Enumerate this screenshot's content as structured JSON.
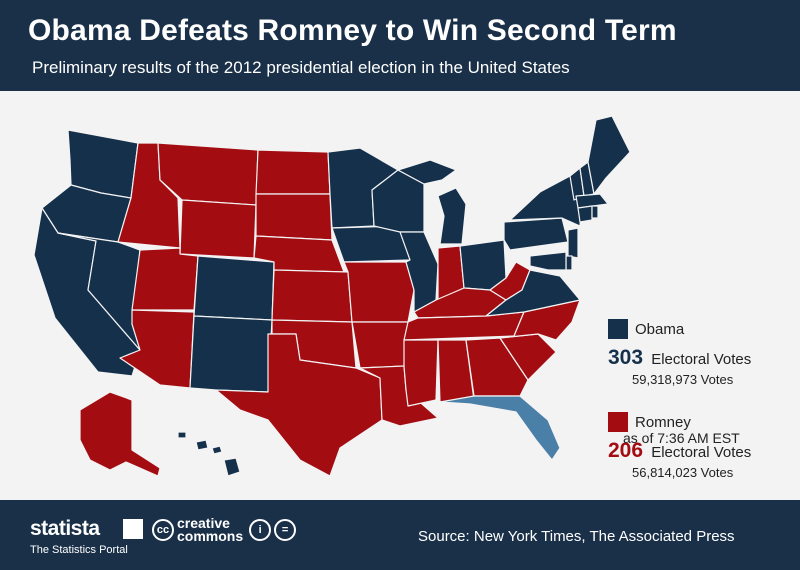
{
  "header": {
    "title": "Obama Defeats Romney to Win Second Term",
    "subtitle": "Preliminary results of the 2012 presidential election in the United States"
  },
  "colors": {
    "obama": "#15304b",
    "romney": "#a30d12",
    "undecided": "#4a7fa8",
    "header_bg": "#1a3048",
    "background": "#f3f3f4"
  },
  "legend": {
    "obama": {
      "name": "Obama",
      "electoral_votes": "303",
      "ev_label": "Electoral Votes",
      "popular_votes": "59,318,973 Votes"
    },
    "romney": {
      "name": "Romney",
      "electoral_votes": "206",
      "ev_label": "Electoral Votes",
      "popular_votes": "56,814,023 Votes"
    }
  },
  "as_of": "as of 7:36 AM EST",
  "footer": {
    "brand": "statista",
    "brand_tagline": "The Statistics Portal",
    "license_logo": "creative commons",
    "license_line1": "creative",
    "license_line2": "commons",
    "source": "Source: New York Times, The Associated Press"
  },
  "map": {
    "states_obama": [
      "WA",
      "OR",
      "CA",
      "NV",
      "CO",
      "NM",
      "MN",
      "WI",
      "IA",
      "IL",
      "MI",
      "OH",
      "PA",
      "VA",
      "NY",
      "ME",
      "NH",
      "VT",
      "MA",
      "RI",
      "CT",
      "NJ",
      "DE",
      "MD",
      "DC",
      "HI"
    ],
    "states_romney": [
      "AK",
      "ID",
      "MT",
      "WY",
      "UT",
      "AZ",
      "ND",
      "SD",
      "NE",
      "KS",
      "OK",
      "TX",
      "MO",
      "AR",
      "LA",
      "MS",
      "AL",
      "GA",
      "TN",
      "KY",
      "IN",
      "WV",
      "NC",
      "SC"
    ],
    "states_undecided": [
      "FL"
    ]
  }
}
